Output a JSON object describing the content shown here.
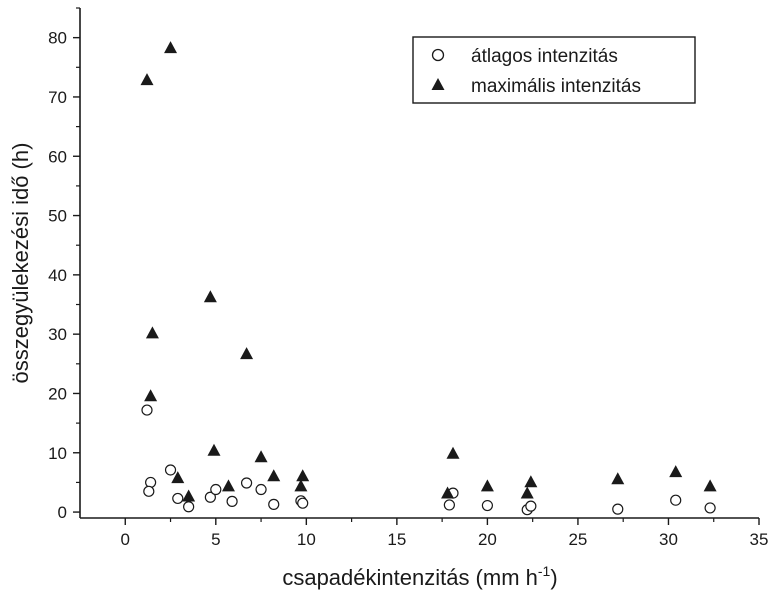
{
  "chart_data": {
    "type": "scatter",
    "xlabel_main": "csapadékintenzitás (mm h",
    "xlabel_sup": "-1",
    "xlabel_end": ")",
    "ylabel": "összegyülekezési idő (h)",
    "xlim": [
      -2.5,
      35
    ],
    "ylim": [
      -1,
      85
    ],
    "xticks": [
      0,
      5,
      10,
      15,
      20,
      25,
      30,
      35
    ],
    "yticks": [
      0,
      10,
      20,
      30,
      40,
      50,
      60,
      70,
      80
    ],
    "legend_position": "top-right",
    "series": [
      {
        "name": "átlagos intenzitás",
        "marker": "open-circle",
        "color": "#1a1a1a",
        "points": [
          [
            1.2,
            17.2
          ],
          [
            1.4,
            5.0
          ],
          [
            1.3,
            3.5
          ],
          [
            2.5,
            7.1
          ],
          [
            2.9,
            2.3
          ],
          [
            3.5,
            0.9
          ],
          [
            4.7,
            2.5
          ],
          [
            5.0,
            3.8
          ],
          [
            5.9,
            1.8
          ],
          [
            6.7,
            4.9
          ],
          [
            7.5,
            3.8
          ],
          [
            8.2,
            1.3
          ],
          [
            9.7,
            1.9
          ],
          [
            9.8,
            1.5
          ],
          [
            17.9,
            1.2
          ],
          [
            18.1,
            3.2
          ],
          [
            20.0,
            1.1
          ],
          [
            22.2,
            0.4
          ],
          [
            22.4,
            1.0
          ],
          [
            27.2,
            0.5
          ],
          [
            30.4,
            2.0
          ],
          [
            32.3,
            0.7
          ]
        ]
      },
      {
        "name": "maximális intenzitás",
        "marker": "filled-triangle",
        "color": "#1a1a1a",
        "points": [
          [
            1.2,
            72.8
          ],
          [
            2.5,
            78.2
          ],
          [
            1.5,
            30.1
          ],
          [
            1.4,
            19.5
          ],
          [
            2.9,
            5.7
          ],
          [
            3.5,
            2.6
          ],
          [
            4.7,
            36.2
          ],
          [
            4.9,
            10.3
          ],
          [
            5.7,
            4.3
          ],
          [
            6.7,
            26.6
          ],
          [
            7.5,
            9.2
          ],
          [
            8.2,
            6.0
          ],
          [
            9.7,
            4.3
          ],
          [
            9.8,
            6.0
          ],
          [
            17.8,
            3.1
          ],
          [
            18.1,
            9.8
          ],
          [
            20.0,
            4.3
          ],
          [
            22.2,
            3.1
          ],
          [
            22.4,
            5.0
          ],
          [
            27.2,
            5.5
          ],
          [
            30.4,
            6.7
          ],
          [
            32.3,
            4.3
          ]
        ]
      }
    ]
  }
}
